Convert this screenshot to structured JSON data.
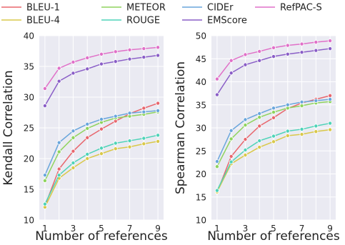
{
  "legend": [
    {
      "name": "BLEU-1",
      "color": "#e8666d"
    },
    {
      "name": "BLEU-4",
      "color": "#d9c84a"
    },
    {
      "name": "METEOR",
      "color": "#8fd45e"
    },
    {
      "name": "ROUGE",
      "color": "#4fd3b8"
    },
    {
      "name": "CIDEr",
      "color": "#6aa6dc"
    },
    {
      "name": "EMScore",
      "color": "#8a5ec7"
    },
    {
      "name": "RefPAC-S",
      "color": "#e070c8"
    }
  ],
  "chart_data": [
    {
      "type": "line",
      "xlabel": "Number of references",
      "ylabel": "Kendall Correlation",
      "x": [
        1,
        2,
        3,
        4,
        5,
        6,
        7,
        8,
        9
      ],
      "xticks": [
        1,
        3,
        5,
        7,
        9
      ],
      "ylim": [
        10,
        40
      ],
      "yticks": [
        10,
        15,
        20,
        25,
        30,
        35,
        40
      ],
      "grid": true,
      "series": [
        {
          "name": "BLEU-1",
          "values": [
            12.3,
            18.3,
            21.2,
            23.4,
            24.8,
            26.1,
            27.3,
            28.2,
            29.0
          ]
        },
        {
          "name": "BLEU-4",
          "values": [
            12.1,
            16.8,
            18.5,
            20.0,
            20.8,
            21.6,
            21.9,
            22.4,
            22.8
          ]
        },
        {
          "name": "METEOR",
          "values": [
            16.4,
            21.1,
            23.4,
            24.9,
            25.9,
            26.6,
            26.9,
            27.2,
            27.6
          ]
        },
        {
          "name": "ROUGE",
          "values": [
            12.6,
            17.3,
            19.3,
            20.7,
            21.7,
            22.5,
            22.9,
            23.3,
            23.8
          ]
        },
        {
          "name": "CIDEr",
          "values": [
            17.3,
            22.6,
            24.5,
            25.6,
            26.4,
            26.9,
            27.4,
            27.6,
            27.8
          ]
        },
        {
          "name": "EMScore",
          "values": [
            28.6,
            32.6,
            33.9,
            34.6,
            35.4,
            35.8,
            36.2,
            36.5,
            36.8
          ]
        },
        {
          "name": "RefPAC-S",
          "values": [
            31.4,
            34.7,
            35.7,
            36.4,
            37.0,
            37.4,
            37.7,
            37.9,
            38.1
          ]
        }
      ]
    },
    {
      "type": "line",
      "xlabel": "Number of references",
      "ylabel": "Spearman Correlation",
      "x": [
        1,
        2,
        3,
        4,
        5,
        6,
        7,
        8,
        9
      ],
      "xticks": [
        1,
        3,
        5,
        7,
        9
      ],
      "ylim": [
        10,
        50
      ],
      "yticks": [
        10,
        15,
        20,
        25,
        30,
        35,
        40,
        45,
        50
      ],
      "grid": true,
      "series": [
        {
          "name": "BLEU-1",
          "values": [
            16.0,
            23.8,
            27.5,
            30.4,
            32.2,
            34.2,
            35.4,
            36.2,
            37.0
          ]
        },
        {
          "name": "BLEU-4",
          "values": [
            16.1,
            22.2,
            24.1,
            25.8,
            27.0,
            28.3,
            28.6,
            29.2,
            29.6
          ]
        },
        {
          "name": "METEOR",
          "values": [
            21.6,
            27.6,
            30.6,
            32.3,
            33.4,
            34.3,
            34.8,
            35.4,
            35.7
          ]
        },
        {
          "name": "ROUGE",
          "values": [
            16.4,
            22.6,
            25.2,
            27.2,
            28.2,
            29.3,
            29.7,
            30.4,
            31.0
          ]
        },
        {
          "name": "CIDEr",
          "values": [
            22.7,
            29.4,
            31.8,
            33.1,
            34.3,
            35.0,
            35.6,
            35.9,
            36.2
          ]
        },
        {
          "name": "EMScore",
          "values": [
            37.2,
            41.9,
            43.7,
            44.6,
            45.5,
            46.0,
            46.4,
            46.8,
            47.2
          ]
        },
        {
          "name": "RefPAC-S",
          "values": [
            40.6,
            44.6,
            45.9,
            46.6,
            47.4,
            47.9,
            48.2,
            48.6,
            48.9
          ]
        }
      ]
    }
  ]
}
